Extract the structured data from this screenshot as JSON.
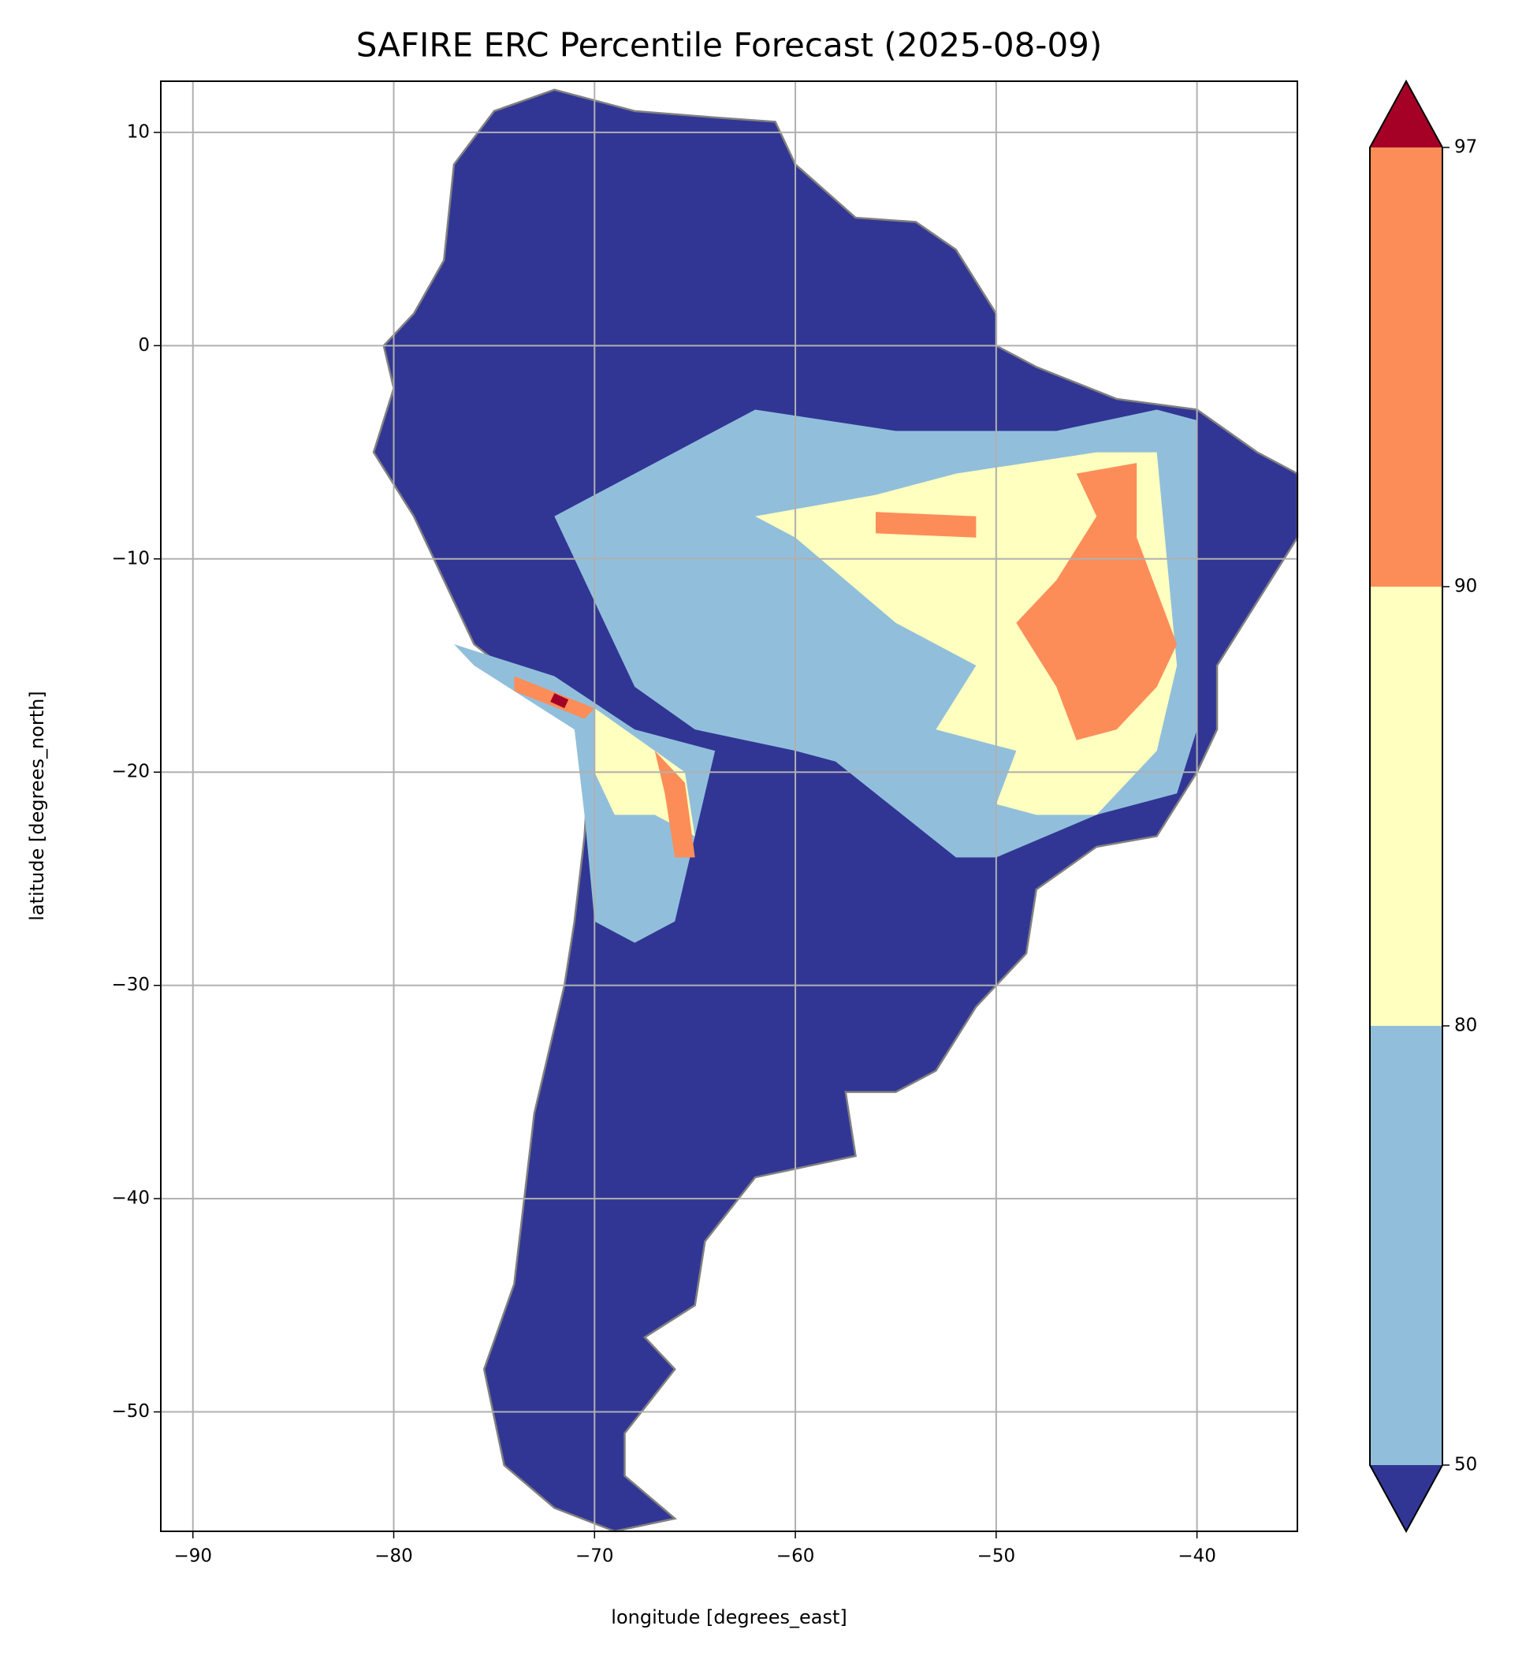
{
  "chart_data": {
    "type": "map",
    "title": "SAFIRE ERC Percentile Forecast (2025-08-09)",
    "xlabel": "longitude [degrees_east]",
    "ylabel": "latitude [degrees_north]",
    "xlim": [
      -91.6,
      -35
    ],
    "ylim": [
      -55.6,
      12.4
    ],
    "xticks": [
      {
        "value": -90,
        "label": "−90"
      },
      {
        "value": -80,
        "label": "−80"
      },
      {
        "value": -70,
        "label": "−70"
      },
      {
        "value": -60,
        "label": "−60"
      },
      {
        "value": -50,
        "label": "−50"
      },
      {
        "value": -40,
        "label": "−40"
      }
    ],
    "yticks": [
      10,
      0,
      {
        "value": -10,
        "label": "−10"
      },
      {
        "value": -20,
        "label": "−20"
      },
      {
        "value": -30,
        "label": "−30"
      },
      {
        "value": -40,
        "label": "−40"
      },
      {
        "value": -50,
        "label": "−50"
      }
    ],
    "grid": true,
    "colorbar": {
      "ticks": [
        50,
        80,
        90,
        97
      ],
      "colors": [
        "#313695",
        "#91bfdb",
        "#ffffbf",
        "#fc8d59",
        "#a50026"
      ],
      "extend": "both"
    }
  }
}
